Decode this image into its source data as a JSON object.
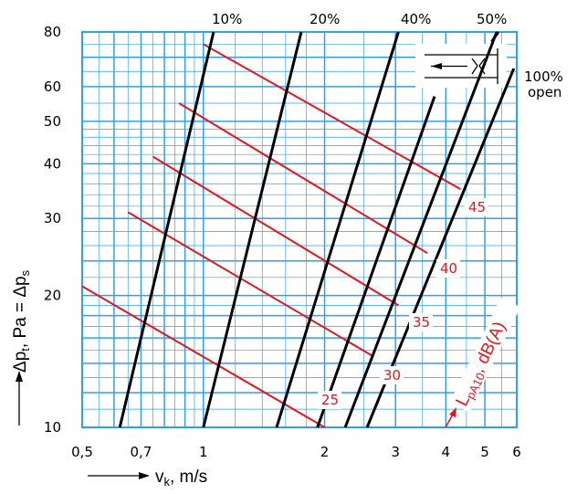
{
  "chart_data": {
    "type": "line",
    "x_scale": "log",
    "y_scale": "log",
    "xlim": [
      0.5,
      6
    ],
    "ylim": [
      10,
      80
    ],
    "grid": true,
    "x_ticks": [
      "0,5",
      "0,7",
      "1",
      "2",
      "3",
      "4",
      "5",
      "6"
    ],
    "x_tick_values": [
      0.5,
      0.7,
      1,
      2,
      3,
      4,
      5,
      6
    ],
    "y_ticks": [
      "10",
      "20",
      "30",
      "40",
      "50",
      "60",
      "80"
    ],
    "y_tick_values": [
      10,
      20,
      30,
      40,
      50,
      60,
      80
    ],
    "xlabel": {
      "main": "v",
      "sub": "k",
      "rest": ", m/s"
    },
    "ylabel": {
      "a": "Δp",
      "a_sub": "t",
      "b": ", Pa = Δp",
      "b_sub": "s"
    },
    "sound_axis_label": {
      "L": "L",
      "sub": "pA10",
      "rest": ", dB(A)"
    },
    "colors": {
      "grid": "#33a0e6",
      "opening": "#000000",
      "sound": "#e0161e"
    },
    "opening_series": [
      {
        "label": "10%",
        "points": [
          [
            0.62,
            10
          ],
          [
            1.06,
            80
          ]
        ]
      },
      {
        "label": "20%",
        "points": [
          [
            1.0,
            10
          ],
          [
            1.75,
            80
          ]
        ]
      },
      {
        "label": "40%",
        "points": [
          [
            1.52,
            10
          ],
          [
            3.05,
            80
          ]
        ]
      },
      {
        "label": "",
        "points": [
          [
            1.92,
            10
          ],
          [
            3.75,
            57
          ]
        ]
      },
      {
        "label": "50%",
        "points": [
          [
            2.25,
            10
          ],
          [
            5.35,
            80
          ]
        ],
        "extra_segment": [
          [
            5.2,
            76
          ],
          [
            5.4,
            80
          ]
        ]
      },
      {
        "label_line1": "100%",
        "label_line2": "open",
        "points": [
          [
            2.55,
            10
          ],
          [
            5.9,
            66
          ]
        ]
      }
    ],
    "sound_series": [
      {
        "label": "25",
        "points": [
          [
            0.5,
            21
          ],
          [
            2.0,
            10
          ]
        ]
      },
      {
        "label": "30",
        "points": [
          [
            0.65,
            31
          ],
          [
            2.65,
            14.5
          ]
        ]
      },
      {
        "label": "35",
        "points": [
          [
            0.75,
            41.5
          ],
          [
            3.05,
            19
          ]
        ]
      },
      {
        "label": "40",
        "points": [
          [
            0.87,
            55
          ],
          [
            3.6,
            25
          ]
        ]
      },
      {
        "label": "45",
        "points": [
          [
            1.0,
            75
          ],
          [
            4.35,
            35
          ]
        ]
      }
    ]
  }
}
